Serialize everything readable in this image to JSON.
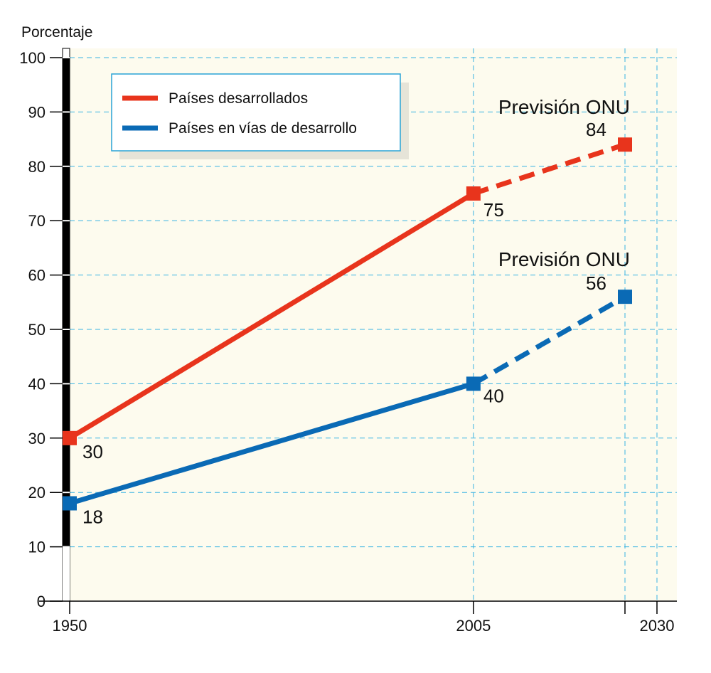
{
  "chart_data": {
    "type": "line",
    "ylabel": "Porcentaje",
    "xlim": [
      1950,
      2030
    ],
    "ylim": [
      0,
      100
    ],
    "x_ticks": [
      "1950",
      "2005",
      "2030"
    ],
    "y_ticks": [
      "0",
      "10",
      "20",
      "30",
      "40",
      "50",
      "60",
      "70",
      "80",
      "90",
      "100"
    ],
    "grid": true,
    "legend_position": "top-left",
    "series": [
      {
        "name": "Países desarrollados",
        "color": "#e8341c",
        "points": [
          {
            "x": 1950,
            "y": 30,
            "label": "30",
            "projected": false
          },
          {
            "x": 2005,
            "y": 75,
            "label": "75",
            "projected": false
          },
          {
            "x": 2030,
            "y": 84,
            "label": "84",
            "projected": true
          }
        ]
      },
      {
        "name": "Países en vías de desarrollo",
        "color": "#0a6ab5",
        "points": [
          {
            "x": 1950,
            "y": 18,
            "label": "18",
            "projected": false
          },
          {
            "x": 2005,
            "y": 40,
            "label": "40",
            "projected": false
          },
          {
            "x": 2030,
            "y": 56,
            "label": "56",
            "projected": true
          }
        ]
      }
    ],
    "annotations": [
      {
        "series": 0,
        "text": "Previsión ONU"
      },
      {
        "series": 1,
        "text": "Previsión ONU"
      }
    ]
  }
}
